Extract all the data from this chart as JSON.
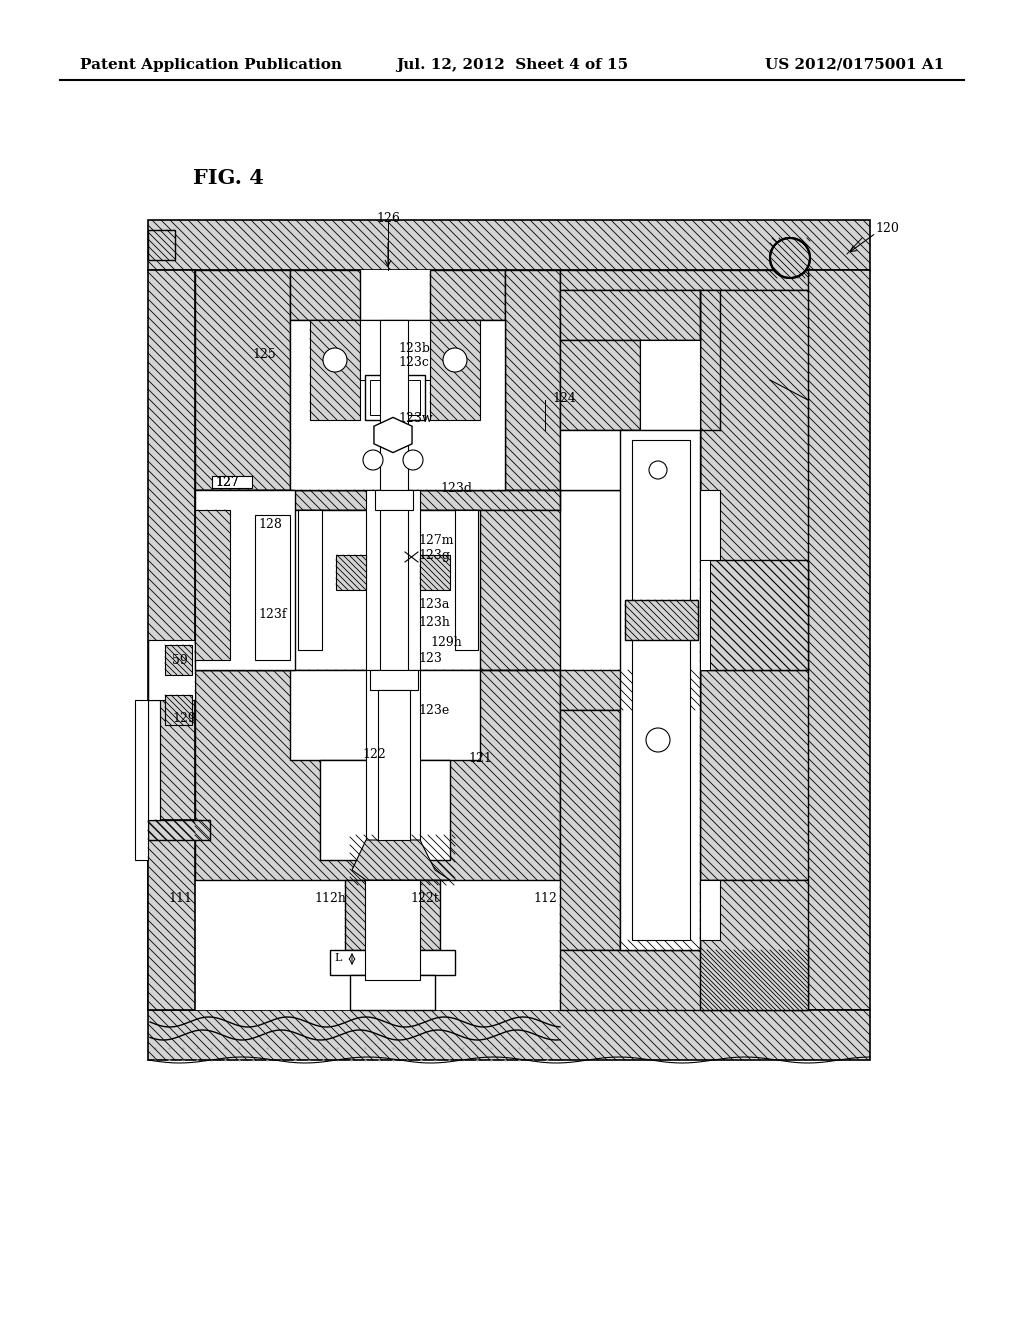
{
  "header_left": "Patent Application Publication",
  "header_center": "Jul. 12, 2012  Sheet 4 of 15",
  "header_right": "US 2012/0175001 A1",
  "fig_label": "FIG. 4",
  "bg": "#ffffff",
  "hc": "#ffffff",
  "labels": [
    [
      "126",
      388,
      218,
      "center"
    ],
    [
      "120",
      875,
      228,
      "left"
    ],
    [
      "125",
      252,
      355,
      "left"
    ],
    [
      "123b",
      398,
      348,
      "left"
    ],
    [
      "123c",
      398,
      362,
      "left"
    ],
    [
      "124",
      552,
      398,
      "left"
    ],
    [
      "123w",
      398,
      418,
      "left"
    ],
    [
      "127",
      215,
      480,
      "left"
    ],
    [
      "128",
      258,
      525,
      "left"
    ],
    [
      "127m",
      418,
      540,
      "left"
    ],
    [
      "123g",
      418,
      556,
      "left"
    ],
    [
      "123d",
      440,
      488,
      "left"
    ],
    [
      "123f",
      258,
      614,
      "left"
    ],
    [
      "123a",
      418,
      604,
      "left"
    ],
    [
      "123h",
      418,
      623,
      "left"
    ],
    [
      "129h",
      430,
      642,
      "left"
    ],
    [
      "59",
      172,
      660,
      "left"
    ],
    [
      "123",
      418,
      658,
      "left"
    ],
    [
      "129",
      172,
      718,
      "left"
    ],
    [
      "123e",
      418,
      710,
      "left"
    ],
    [
      "122",
      362,
      754,
      "left"
    ],
    [
      "121",
      468,
      758,
      "left"
    ],
    [
      "111",
      180,
      898,
      "center"
    ],
    [
      "112h",
      330,
      898,
      "center"
    ],
    [
      "122t",
      425,
      898,
      "center"
    ],
    [
      "112",
      545,
      898,
      "center"
    ]
  ]
}
